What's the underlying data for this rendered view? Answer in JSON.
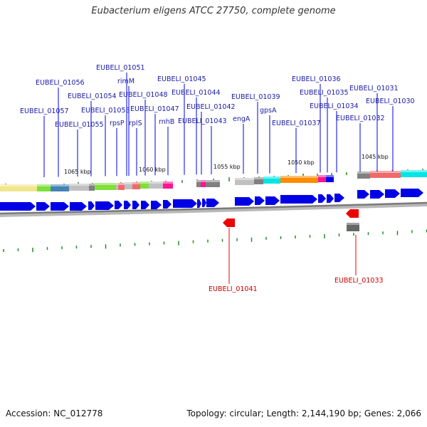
{
  "title": "Eubacterium eligens ATCC 27750, complete genome",
  "footer": {
    "accession": "Accession: NC_012778",
    "summary": "Topology: circular; Length: 2,144,190 bp; Genes: 2,066"
  },
  "colors": {
    "forward_gene": "#0000e6",
    "reverse_gene": "#ee0000",
    "label_forward": "#1a1aa6",
    "label_reverse": "#c80000",
    "tick": "#228b22"
  },
  "kbp_labels": [
    "1065 kbp",
    "1060 kbp",
    "1055 kbp",
    "1050 kbp",
    "1045 kbp"
  ],
  "gene_labels_top": [
    "EUBELI_01051",
    "EUBELI_01056",
    "rimM",
    "EUBELI_01054",
    "EUBELI_01048",
    "EUBELI_01045",
    "EUBELI_01044",
    "EUBELI_01053",
    "EUBELI_01047",
    "EUBELI_01057",
    "EUBELI_01042",
    "rpsP",
    "rplS",
    "rnhB",
    "EUBELI_01055",
    "EUBELI_01043",
    "EUBELI_01039",
    "engA",
    "gpsA",
    "EUBELI_01036",
    "EUBELI_01035",
    "EUBELI_01034",
    "EUBELI_01037",
    "EUBELI_01031",
    "EUBELI_01030",
    "EUBELI_01032"
  ],
  "gene_labels_bottom": [
    "EUBELI_01041",
    "EUBELI_01033"
  ]
}
